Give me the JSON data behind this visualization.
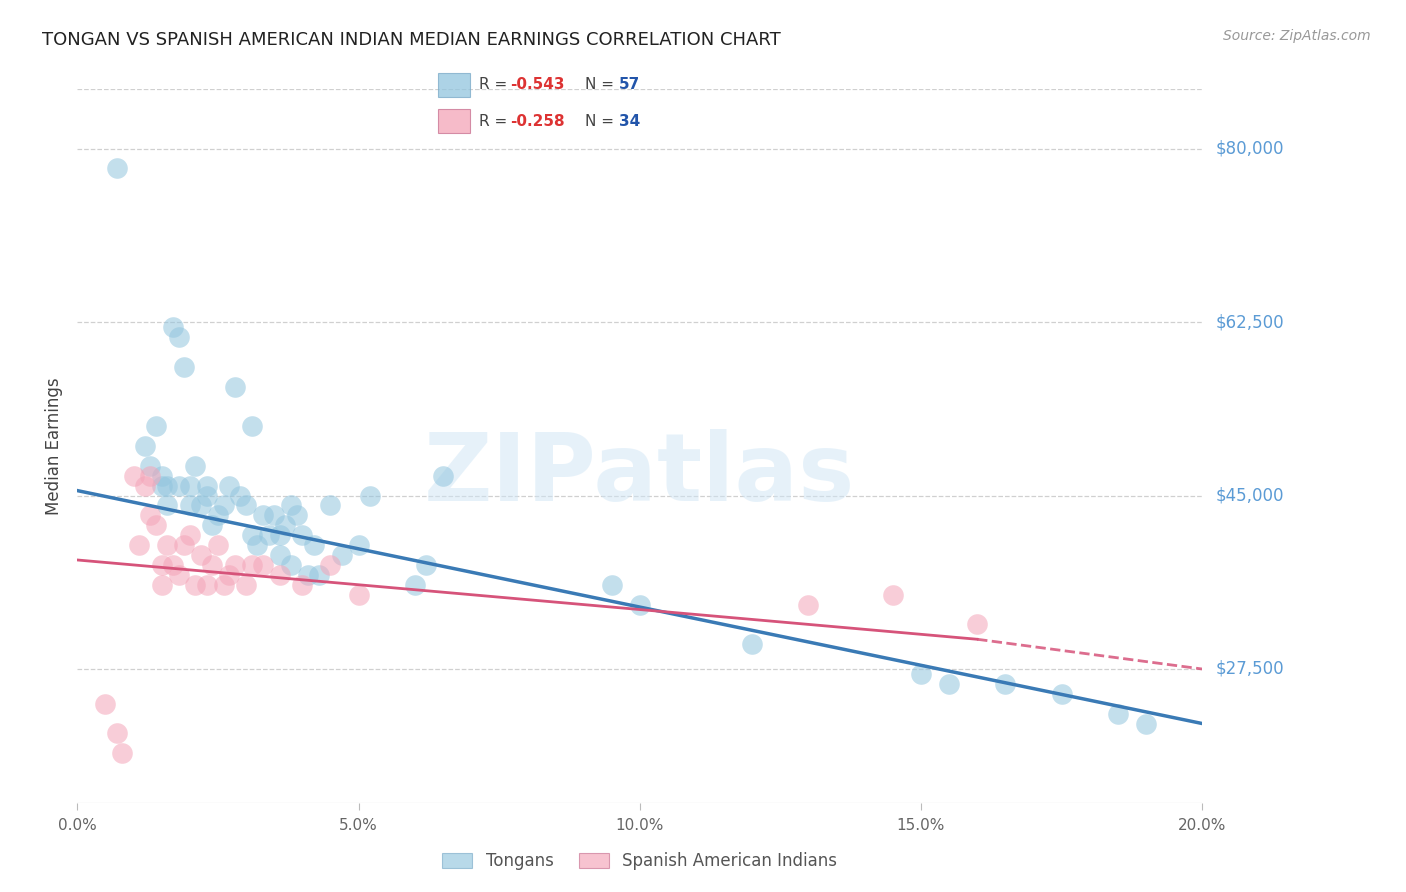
{
  "title": "TONGAN VS SPANISH AMERICAN INDIAN MEDIAN EARNINGS CORRELATION CHART",
  "source": "Source: ZipAtlas.com",
  "ylabel": "Median Earnings",
  "ylim": [
    14000,
    86000
  ],
  "xlim": [
    0.0,
    0.2
  ],
  "ytick_vals": [
    27500,
    45000,
    62500,
    80000
  ],
  "ytick_labels": [
    "$27,500",
    "$45,000",
    "$62,500",
    "$80,000"
  ],
  "xtick_vals": [
    0.0,
    0.05,
    0.1,
    0.15,
    0.2
  ],
  "xtick_labels": [
    "0.0%",
    "5.0%",
    "10.0%",
    "15.0%",
    "20.0%"
  ],
  "legend_blue_r": "-0.543",
  "legend_blue_n": "57",
  "legend_pink_r": "-0.258",
  "legend_pink_n": "34",
  "legend_label_blue": "Tongans",
  "legend_label_pink": "Spanish American Indians",
  "blue_scatter_color": "#92c5de",
  "blue_line_color": "#3a7ab5",
  "pink_scatter_color": "#f4a4b8",
  "pink_line_color": "#d6537a",
  "watermark": "ZIPatlas",
  "grid_color": "#d0d0d0",
  "title_color": "#222222",
  "source_color": "#999999",
  "ytick_color": "#5b9bd5",
  "xtick_color": "#666666",
  "ylabel_color": "#444444",
  "tongans_x": [
    0.007,
    0.012,
    0.013,
    0.014,
    0.015,
    0.015,
    0.016,
    0.016,
    0.017,
    0.018,
    0.018,
    0.019,
    0.02,
    0.02,
    0.021,
    0.022,
    0.023,
    0.023,
    0.024,
    0.025,
    0.026,
    0.027,
    0.028,
    0.029,
    0.03,
    0.031,
    0.031,
    0.032,
    0.033,
    0.034,
    0.035,
    0.036,
    0.036,
    0.037,
    0.038,
    0.038,
    0.039,
    0.04,
    0.041,
    0.042,
    0.043,
    0.045,
    0.047,
    0.05,
    0.052,
    0.06,
    0.062,
    0.065,
    0.095,
    0.1,
    0.12,
    0.15,
    0.155,
    0.165,
    0.175,
    0.185,
    0.19
  ],
  "tongans_y": [
    78000,
    50000,
    48000,
    52000,
    47000,
    46000,
    44000,
    46000,
    62000,
    61000,
    46000,
    58000,
    46000,
    44000,
    48000,
    44000,
    45000,
    46000,
    42000,
    43000,
    44000,
    46000,
    56000,
    45000,
    44000,
    41000,
    52000,
    40000,
    43000,
    41000,
    43000,
    39000,
    41000,
    42000,
    44000,
    38000,
    43000,
    41000,
    37000,
    40000,
    37000,
    44000,
    39000,
    40000,
    45000,
    36000,
    38000,
    47000,
    36000,
    34000,
    30000,
    27000,
    26000,
    26000,
    25000,
    23000,
    22000
  ],
  "sai_x": [
    0.005,
    0.007,
    0.008,
    0.01,
    0.011,
    0.012,
    0.013,
    0.013,
    0.014,
    0.015,
    0.015,
    0.016,
    0.017,
    0.018,
    0.019,
    0.02,
    0.021,
    0.022,
    0.023,
    0.024,
    0.025,
    0.026,
    0.027,
    0.028,
    0.03,
    0.031,
    0.033,
    0.036,
    0.04,
    0.045,
    0.05,
    0.13,
    0.145,
    0.16
  ],
  "sai_y": [
    24000,
    21000,
    19000,
    47000,
    40000,
    46000,
    43000,
    47000,
    42000,
    38000,
    36000,
    40000,
    38000,
    37000,
    40000,
    41000,
    36000,
    39000,
    36000,
    38000,
    40000,
    36000,
    37000,
    38000,
    36000,
    38000,
    38000,
    37000,
    36000,
    38000,
    35000,
    34000,
    35000,
    32000
  ]
}
